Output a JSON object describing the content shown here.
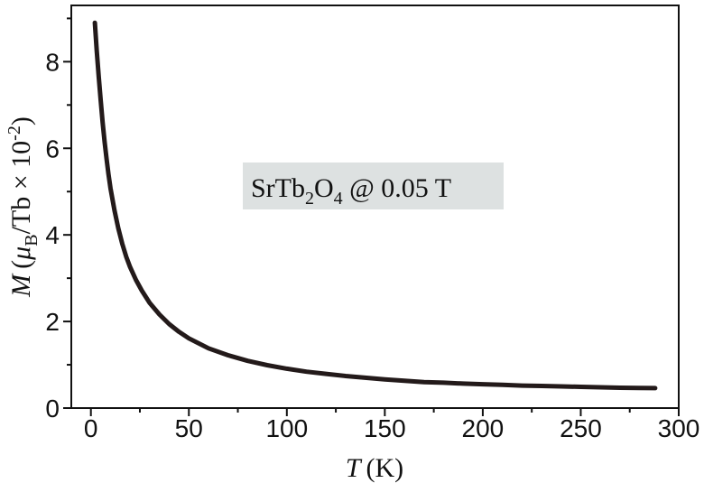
{
  "chart_data": {
    "type": "line",
    "title": "",
    "xlabel": {
      "symbol": "T",
      "unit": "(K)"
    },
    "ylabel": {
      "symbol": "M",
      "open": "(",
      "mu": "μ",
      "mu_sub": "B",
      "middle": "/Tb × 10",
      "exp": "-2",
      "close": ")"
    },
    "xlim": [
      -10,
      300
    ],
    "ylim": [
      0,
      9.3
    ],
    "xticks": [
      0,
      50,
      100,
      150,
      200,
      250,
      300
    ],
    "yticks": [
      0,
      2,
      4,
      6,
      8
    ],
    "grid": false,
    "annotation": {
      "part1": "SrTb",
      "sub1": "2",
      "part2": "O",
      "sub2": "4",
      "part3": " @ 0.05 T",
      "box_color": "#dde1e1"
    },
    "line_color": "#231a1a",
    "series": [
      {
        "x": [
          2,
          3,
          4,
          5,
          6,
          7,
          8,
          9,
          10,
          12,
          14,
          16,
          18,
          20,
          23,
          26,
          30,
          35,
          40,
          45,
          50,
          60,
          70,
          80,
          90,
          100,
          110,
          120,
          130,
          140,
          150,
          160,
          170,
          180,
          190,
          200,
          210,
          220,
          230,
          240,
          250,
          260,
          270,
          280,
          288
        ],
        "y": [
          8.9,
          8.25,
          7.65,
          7.1,
          6.6,
          6.15,
          5.75,
          5.4,
          5.08,
          4.57,
          4.15,
          3.8,
          3.5,
          3.26,
          2.96,
          2.71,
          2.43,
          2.16,
          1.94,
          1.76,
          1.61,
          1.38,
          1.22,
          1.09,
          0.99,
          0.91,
          0.84,
          0.79,
          0.74,
          0.7,
          0.66,
          0.63,
          0.6,
          0.585,
          0.565,
          0.55,
          0.535,
          0.52,
          0.51,
          0.5,
          0.49,
          0.48,
          0.47,
          0.465,
          0.46
        ]
      }
    ]
  }
}
